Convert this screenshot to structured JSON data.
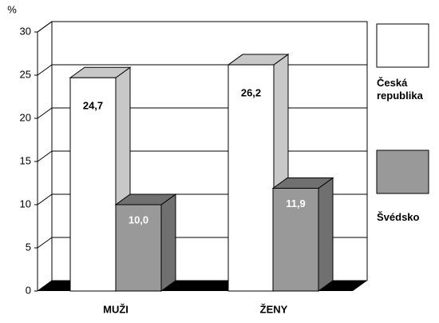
{
  "chart_data": {
    "type": "bar",
    "y_label": "%",
    "categories": [
      "MUŽI",
      "ŽENY"
    ],
    "series": [
      {
        "name": "Česká republika",
        "color": "#ffffff",
        "values": [
          24.7,
          26.2
        ],
        "value_labels": [
          "24,7",
          "26,2"
        ]
      },
      {
        "name": "Švédsko",
        "color": "#999999",
        "values": [
          10,
          11.9
        ],
        "value_labels": [
          "10,0",
          "11,9"
        ]
      }
    ],
    "ylim": [
      0,
      30
    ],
    "yticks": [
      0,
      5,
      10,
      15,
      20,
      25,
      30
    ],
    "grid": true
  }
}
